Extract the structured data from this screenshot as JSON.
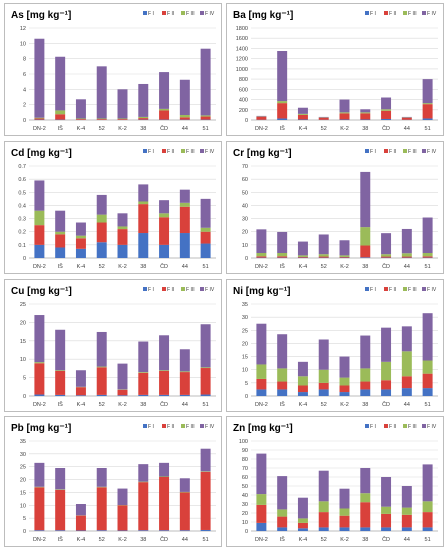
{
  "colors": {
    "F I": "#4472c4",
    "F II": "#d9413b",
    "F III": "#9bbb59",
    "F IV": "#8064a2",
    "axis": "#7f7f7f",
    "grid": "#d9d9d9",
    "text": "#000000"
  },
  "chart_data": [
    {
      "type": "bar",
      "stacked": true,
      "title": "As [mg kg⁻¹]",
      "categories": [
        "DN-2",
        "IŠ",
        "K-4",
        "52",
        "K-2",
        "38",
        "ČD",
        "44",
        "51"
      ],
      "ylim": [
        0,
        12
      ],
      "yticks": [
        0,
        2,
        4,
        6,
        8,
        10,
        12
      ],
      "legend": "top-right",
      "grid": true,
      "series": [
        {
          "name": "F I",
          "values": [
            0.05,
            0.05,
            0.02,
            0.02,
            0.02,
            0.05,
            0.05,
            0.05,
            0.05
          ]
        },
        {
          "name": "F II",
          "values": [
            0.15,
            0.7,
            0.1,
            0.1,
            0.1,
            0.2,
            1.2,
            0.3,
            0.4
          ]
        },
        {
          "name": "F III",
          "values": [
            0.1,
            0.5,
            0.08,
            0.08,
            0.08,
            0.15,
            0.2,
            0.3,
            0.15
          ]
        },
        {
          "name": "F IV",
          "values": [
            10.3,
            7.0,
            2.5,
            6.8,
            3.8,
            4.3,
            4.8,
            4.6,
            8.7
          ]
        }
      ]
    },
    {
      "type": "bar",
      "stacked": true,
      "title": "Ba [mg kg⁻¹]",
      "categories": [
        "DN-2",
        "IŠ",
        "K-4",
        "52",
        "K-2",
        "38",
        "ČD",
        "44",
        "51"
      ],
      "ylim": [
        0,
        1800
      ],
      "yticks": [
        0,
        200,
        400,
        600,
        800,
        1000,
        1200,
        1400,
        1600,
        1800
      ],
      "legend": "top-right",
      "grid": true,
      "series": [
        {
          "name": "F I",
          "values": [
            5,
            30,
            10,
            5,
            10,
            10,
            20,
            5,
            30
          ]
        },
        {
          "name": "F II",
          "values": [
            60,
            300,
            90,
            40,
            120,
            120,
            160,
            40,
            280
          ]
        },
        {
          "name": "F III",
          "values": [
            5,
            40,
            20,
            5,
            20,
            20,
            30,
            5,
            20
          ]
        },
        {
          "name": "F IV",
          "values": [
            10,
            980,
            120,
            10,
            250,
            60,
            230,
            10,
            470
          ]
        }
      ]
    },
    {
      "type": "bar",
      "stacked": true,
      "title": "Cd [mg kg⁻¹]",
      "categories": [
        "DN-2",
        "IŠ",
        "K-4",
        "52",
        "K-2",
        "38",
        "ČD",
        "44",
        "51"
      ],
      "ylim": [
        0,
        0.7
      ],
      "yticks": [
        0,
        0.1,
        0.2,
        0.3,
        0.4,
        0.5,
        0.6,
        0.7
      ],
      "legend": "top-right",
      "grid": true,
      "series": [
        {
          "name": "F I",
          "values": [
            0.1,
            0.08,
            0.07,
            0.12,
            0.1,
            0.19,
            0.1,
            0.19,
            0.11
          ]
        },
        {
          "name": "F II",
          "values": [
            0.15,
            0.1,
            0.08,
            0.15,
            0.12,
            0.22,
            0.21,
            0.2,
            0.09
          ]
        },
        {
          "name": "F III",
          "values": [
            0.11,
            0.02,
            0.02,
            0.06,
            0.02,
            0.02,
            0.03,
            0.03,
            0.03
          ]
        },
        {
          "name": "F IV",
          "values": [
            0.23,
            0.16,
            0.1,
            0.15,
            0.1,
            0.13,
            0.1,
            0.1,
            0.22
          ]
        }
      ]
    },
    {
      "type": "bar",
      "stacked": true,
      "title": "Cr [mg kg⁻¹]",
      "categories": [
        "DN-2",
        "IŠ",
        "K-4",
        "52",
        "K-2",
        "38",
        "ČD",
        "44",
        "51"
      ],
      "ylim": [
        0,
        70
      ],
      "yticks": [
        0,
        10,
        20,
        30,
        40,
        50,
        60,
        70
      ],
      "legend": "top-right",
      "grid": true,
      "series": [
        {
          "name": "F I",
          "values": [
            0.3,
            0.3,
            0.3,
            0.3,
            0.3,
            0.5,
            0.3,
            0.3,
            0.3
          ]
        },
        {
          "name": "F II",
          "values": [
            1,
            1,
            0.5,
            0.8,
            0.5,
            9,
            0.8,
            0.8,
            1
          ]
        },
        {
          "name": "F III",
          "values": [
            2.5,
            2.5,
            1.2,
            1.8,
            1.2,
            14,
            1.8,
            2.5,
            2.5
          ]
        },
        {
          "name": "F IV",
          "values": [
            18,
            16,
            10.5,
            15,
            11.5,
            42,
            16,
            18.5,
            27
          ]
        }
      ]
    },
    {
      "type": "bar",
      "stacked": true,
      "title": "Cu [mg kg⁻¹]",
      "categories": [
        "DN-2",
        "IŠ",
        "K-4",
        "52",
        "K-2",
        "38",
        "ČD",
        "44",
        "51"
      ],
      "ylim": [
        0,
        25
      ],
      "yticks": [
        0,
        5,
        10,
        15,
        20,
        25
      ],
      "legend": "top-right",
      "grid": true,
      "series": [
        {
          "name": "F I",
          "values": [
            0.4,
            0.3,
            0.2,
            0.3,
            0.2,
            0.3,
            0.3,
            0.3,
            0.4
          ]
        },
        {
          "name": "F II",
          "values": [
            8.5,
            6.5,
            2.2,
            7.5,
            1.5,
            6,
            6.5,
            6.2,
            7.2
          ]
        },
        {
          "name": "F III",
          "values": [
            0.3,
            0.2,
            0.1,
            0.2,
            0.1,
            0.2,
            0.2,
            0.2,
            0.2
          ]
        },
        {
          "name": "F IV",
          "values": [
            12.8,
            11,
            4.5,
            9.4,
            7,
            8.3,
            9.5,
            6,
            11.7
          ]
        }
      ]
    },
    {
      "type": "bar",
      "stacked": true,
      "title": "Ni [mg kg⁻¹]",
      "categories": [
        "DN-2",
        "IŠ",
        "K-4",
        "52",
        "K-2",
        "38",
        "ČD",
        "44",
        "51"
      ],
      "ylim": [
        0,
        35
      ],
      "yticks": [
        0,
        5,
        10,
        15,
        20,
        25,
        30,
        35
      ],
      "legend": "top-right",
      "grid": true,
      "series": [
        {
          "name": "F I",
          "values": [
            2.5,
            2.5,
            1.5,
            2.5,
            1.5,
            2.5,
            2.5,
            3,
            3
          ]
        },
        {
          "name": "F II",
          "values": [
            4,
            3,
            2.5,
            2.5,
            2.5,
            3,
            3.5,
            4.5,
            5.5
          ]
        },
        {
          "name": "F III",
          "values": [
            5.5,
            5,
            3.5,
            5,
            3,
            5,
            7,
            9.5,
            5
          ]
        },
        {
          "name": "F IV",
          "values": [
            15.5,
            13,
            5.5,
            11.5,
            8,
            12.5,
            13,
            9.5,
            18
          ]
        }
      ]
    },
    {
      "type": "bar",
      "stacked": true,
      "title": "Pb [mg kg⁻¹]",
      "categories": [
        "DN-2",
        "IŠ",
        "K-4",
        "52",
        "K-2",
        "38",
        "ČD",
        "44",
        "51"
      ],
      "ylim": [
        0,
        35
      ],
      "yticks": [
        0,
        5,
        10,
        15,
        20,
        25,
        30,
        35
      ],
      "legend": "top-right",
      "grid": true,
      "series": [
        {
          "name": "F I",
          "values": [
            0.3,
            0.3,
            0.2,
            0.3,
            0.2,
            0.3,
            0.3,
            0.3,
            0.4
          ]
        },
        {
          "name": "F II",
          "values": [
            16.7,
            15.7,
            5.8,
            16.7,
            9.8,
            18.7,
            20.7,
            14.7,
            22.6
          ]
        },
        {
          "name": "F III",
          "values": [
            0.2,
            0.2,
            0.1,
            0.2,
            0.1,
            0.2,
            0.2,
            0.2,
            0.2
          ]
        },
        {
          "name": "F IV",
          "values": [
            9.3,
            8.3,
            4.4,
            7.3,
            6.4,
            6.8,
            5.3,
            5.3,
            8.8
          ]
        }
      ]
    },
    {
      "type": "bar",
      "stacked": true,
      "title": "Zn [mg kg⁻¹]",
      "categories": [
        "DN-2",
        "IŠ",
        "K-4",
        "52",
        "K-2",
        "38",
        "ČD",
        "44",
        "51"
      ],
      "ylim": [
        0,
        100
      ],
      "yticks": [
        0,
        10,
        20,
        30,
        40,
        50,
        60,
        70,
        80,
        90,
        100
      ],
      "legend": "top-right",
      "grid": true,
      "series": [
        {
          "name": "F I",
          "values": [
            9,
            4,
            3,
            4,
            4,
            4,
            4,
            4,
            4
          ]
        },
        {
          "name": "F II",
          "values": [
            20,
            12,
            6,
            17,
            13,
            28,
            15,
            14,
            17
          ]
        },
        {
          "name": "F III",
          "values": [
            12,
            8,
            5,
            12,
            8,
            10,
            8,
            8,
            12
          ]
        },
        {
          "name": "F IV",
          "values": [
            45,
            37,
            23,
            34,
            22,
            28,
            33,
            24,
            41
          ]
        }
      ]
    }
  ]
}
